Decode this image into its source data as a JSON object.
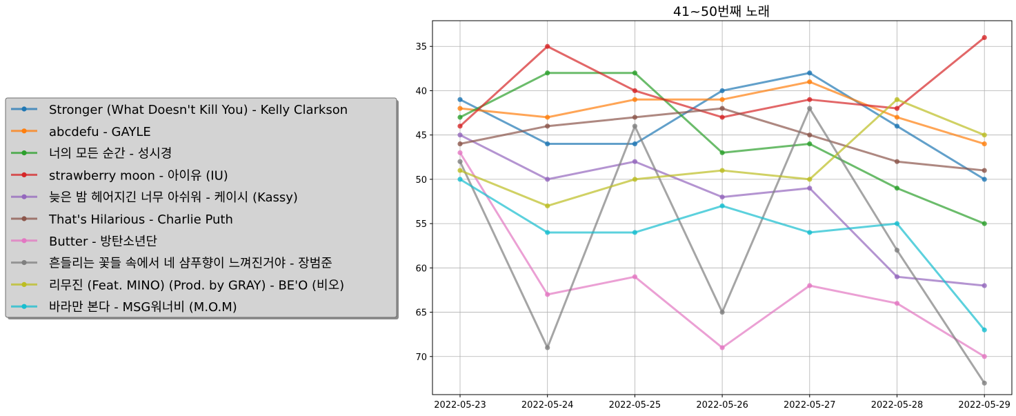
{
  "chart_data": {
    "type": "line",
    "title": "41~50번째 노래",
    "xlabel": "",
    "ylabel": "",
    "y_inverted": true,
    "ylim": [
      74.3,
      32.1
    ],
    "yticks": [
      35,
      40,
      45,
      50,
      55,
      60,
      65,
      70
    ],
    "grid": true,
    "legend_placement": "left, outside the plot area",
    "categories": [
      "2022-05-23",
      "2022-05-24",
      "2022-05-25",
      "2022-05-26",
      "2022-05-27",
      "2022-05-28",
      "2022-05-29"
    ],
    "series": [
      {
        "name": "Stronger (What Doesn't Kill You) - Kelly Clarkson",
        "color": "#1f77b4",
        "values": [
          41,
          46,
          46,
          40,
          38,
          44,
          50
        ]
      },
      {
        "name": "abcdefu - GAYLE",
        "color": "#ff7f0e",
        "values": [
          42,
          43,
          41,
          41,
          39,
          43,
          46
        ]
      },
      {
        "name": "너의 모든 순간 - 성시경",
        "color": "#2ca02c",
        "values": [
          43,
          38,
          38,
          47,
          46,
          51,
          55
        ]
      },
      {
        "name": "strawberry moon - 아이유 (IU)",
        "color": "#d62728",
        "values": [
          44,
          35,
          40,
          43,
          41,
          42,
          34
        ]
      },
      {
        "name": "늦은 밤 헤어지긴 너무 아쉬워 - 케이시 (Kassy)",
        "color": "#9467bd",
        "values": [
          45,
          50,
          48,
          52,
          51,
          61,
          62
        ]
      },
      {
        "name": "That's Hilarious - Charlie Puth",
        "color": "#8c564b",
        "values": [
          46,
          44,
          43,
          42,
          45,
          48,
          49
        ]
      },
      {
        "name": "Butter - 방탄소년단",
        "color": "#e377c2",
        "values": [
          47,
          63,
          61,
          69,
          62,
          64,
          70
        ]
      },
      {
        "name": "흔들리는 꽃들 속에서 네 샴푸향이 느껴진거야 - 장범준",
        "color": "#7f7f7f",
        "values": [
          48,
          69,
          44,
          65,
          42,
          58,
          73
        ]
      },
      {
        "name": "리무진 (Feat. MINO) (Prod. by GRAY) - BE'O (비오)",
        "color": "#bcbd22",
        "values": [
          49,
          53,
          50,
          49,
          50,
          41,
          45
        ]
      },
      {
        "name": "바라만 본다 - MSG워너비 (M.O.M)",
        "color": "#17becf",
        "values": [
          50,
          56,
          56,
          53,
          56,
          55,
          67
        ]
      }
    ]
  }
}
